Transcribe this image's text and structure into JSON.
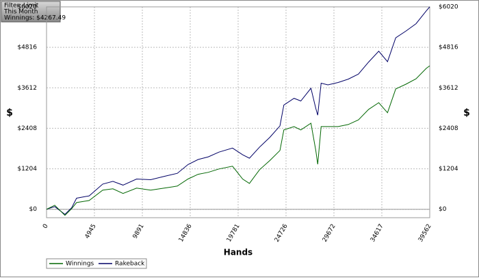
{
  "chart_data": {
    "type": "line",
    "info_box": [
      "Filter: Limit",
      "This Month",
      "Winnings: $4267.49"
    ],
    "x_label": "Hands",
    "y_label": "$",
    "x": [
      0,
      850,
      1900,
      2600,
      3100,
      4400,
      5800,
      6850,
      7900,
      9300,
      10750,
      12150,
      13500,
      14600,
      15650,
      16700,
      17800,
      19200,
      20250,
      20950,
      22000,
      23050,
      24100,
      24500,
      25550,
      26250,
      27300,
      27800,
      28000,
      28350,
      29050,
      30100,
      31150,
      32200,
      33250,
      34300,
      35200,
      36050,
      37100,
      38150,
      39200,
      39562
    ],
    "series": [
      {
        "name": "Winnings",
        "color": "#006600",
        "values": [
          0,
          120,
          -180,
          20,
          200,
          260,
          570,
          610,
          470,
          630,
          570,
          630,
          690,
          900,
          1040,
          1100,
          1200,
          1280,
          900,
          770,
          1180,
          1450,
          1750,
          2360,
          2460,
          2360,
          2560,
          1750,
          1340,
          2460,
          2460,
          2460,
          2520,
          2660,
          2970,
          3170,
          2870,
          3580,
          3720,
          3880,
          4190,
          4267
        ]
      },
      {
        "name": "Rakeback",
        "color": "#000066",
        "values": [
          0,
          80,
          -150,
          50,
          330,
          400,
          750,
          830,
          720,
          900,
          880,
          980,
          1070,
          1330,
          1480,
          1560,
          1700,
          1820,
          1620,
          1520,
          1850,
          2140,
          2480,
          3100,
          3300,
          3220,
          3600,
          3000,
          2800,
          3750,
          3700,
          3770,
          3870,
          4020,
          4380,
          4700,
          4390,
          5100,
          5300,
          5520,
          5900,
          6020
        ]
      }
    ],
    "xlim": [
      0,
      39562
    ],
    "xticks": [
      0,
      4945,
      9891,
      14836,
      19781,
      24726,
      29672,
      34617,
      39562
    ],
    "ylim": [
      -250,
      6020
    ],
    "yticks": [
      {
        "value": 0,
        "label": "$0"
      },
      {
        "value": 1204,
        "label": "$1204"
      },
      {
        "value": 2408,
        "label": "$2408"
      },
      {
        "value": 3612,
        "label": "$3612"
      },
      {
        "value": 4816,
        "label": "$4816"
      },
      {
        "value": 6020,
        "label": "$6020"
      }
    ],
    "grid": true,
    "legend_position": "bottom-left"
  }
}
